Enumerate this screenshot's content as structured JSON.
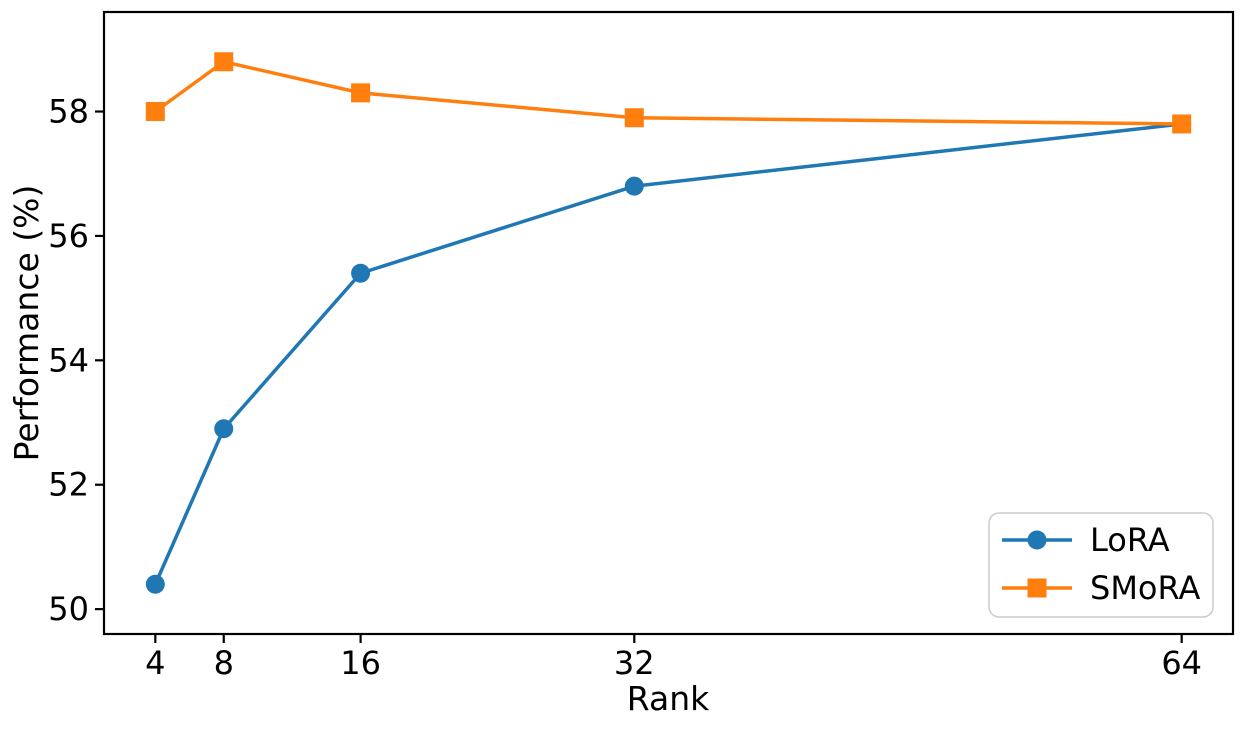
{
  "chart_data": {
    "type": "line",
    "title": "",
    "xlabel": "Rank",
    "ylabel": "Performance (%)",
    "x": [
      4,
      8,
      16,
      32,
      64
    ],
    "series": [
      {
        "name": "LoRA",
        "color": "#1f77b4",
        "marker": "circle",
        "values": [
          50.4,
          52.9,
          55.4,
          56.8,
          57.8
        ]
      },
      {
        "name": "SMoRA",
        "color": "#ff7f0e",
        "marker": "square",
        "values": [
          58.0,
          58.8,
          58.3,
          57.9,
          57.8
        ]
      }
    ],
    "xlim": [
      1,
      67
    ],
    "ylim": [
      49.6,
      59.6
    ],
    "x_ticks": [
      4,
      8,
      16,
      32,
      64
    ],
    "y_ticks": [
      50,
      52,
      54,
      56,
      58
    ],
    "x_scale": "linear",
    "grid": false,
    "legend_position": "lower right",
    "background_color": "#ffffff",
    "text_color": "#000000",
    "spine_color": "#000000",
    "legend_border_color": "#cccccc"
  }
}
